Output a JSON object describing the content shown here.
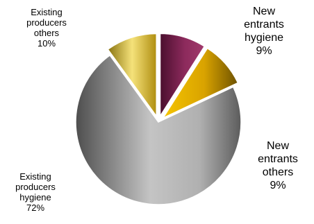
{
  "chart_data": {
    "type": "pie",
    "title": "",
    "slices": [
      {
        "label_lines": [
          "New",
          "entrants",
          "hygiene"
        ],
        "pct_label": "9%",
        "value": 9,
        "color": "#7a2350"
      },
      {
        "label_lines": [
          "New",
          "entrants",
          "others"
        ],
        "pct_label": "9%",
        "value": 9,
        "color": "#e8b400"
      },
      {
        "label_lines": [
          "Existing",
          "producers",
          "hygiene"
        ],
        "pct_label": "72%",
        "value": 72,
        "color": "#a8a8a8"
      },
      {
        "label_lines": [
          "Existing",
          "producers",
          "others"
        ],
        "pct_label": "10%",
        "value": 10,
        "color": "#e0c640"
      }
    ],
    "start_angle_deg": 0,
    "direction": "clockwise",
    "exploded_slices": [
      0,
      1,
      3
    ],
    "legend": "none",
    "grid": false
  }
}
